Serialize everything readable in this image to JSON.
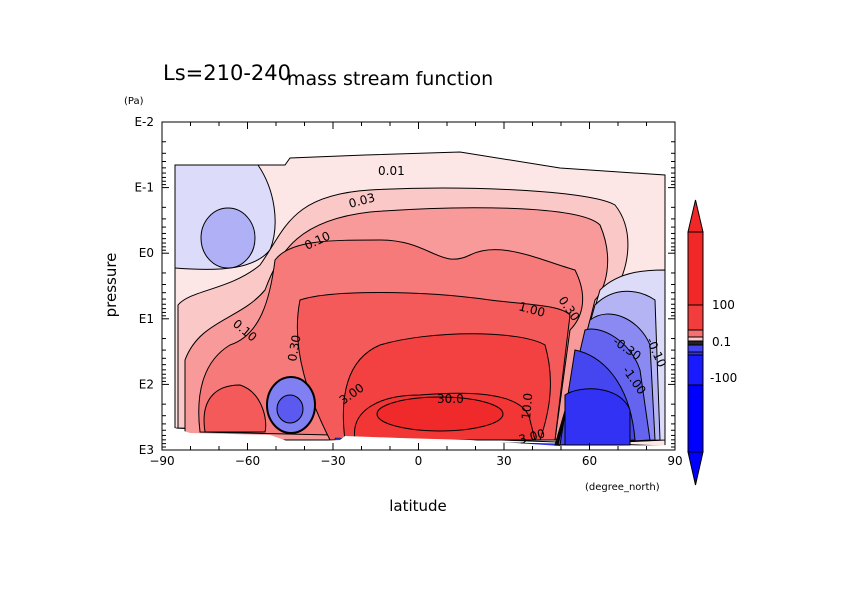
{
  "chart_data": {
    "type": "heatmap",
    "subtype": "filled contour",
    "title": "mass stream function",
    "subtitle": "Ls=210-240",
    "xlabel": "latitude",
    "xunit": "(degree_north)",
    "ylabel": "pressure",
    "yunit": "(Pa)",
    "xlim": [
      -90,
      90
    ],
    "ylim": [
      1000,
      0.01
    ],
    "yscale": "log",
    "x_ticks": [
      "-90",
      "-60",
      "-30",
      "0",
      "30",
      "60",
      "90"
    ],
    "y_ticks": [
      "E-2",
      "E-1",
      "E0",
      "E1",
      "E2",
      "E3"
    ],
    "contour_labels": [
      "0.01",
      "0.03",
      "0.10",
      "0.10",
      "0.30",
      "0.30",
      "1.00",
      "3.00",
      "30.0",
      "10.0",
      "3.00",
      "-0.30",
      "-0.10",
      "-1.00"
    ],
    "colorbar": {
      "tick_labels": [
        "100",
        "-100"
      ],
      "overlapping_labels": "0.1",
      "positive_color": "#f22828",
      "negative_color": "#0000ff"
    },
    "colors": {
      "positive": "#f22828",
      "negative": "#0000ff",
      "zero": "#ffffff"
    },
    "features": [
      {
        "desc": "main positive cell",
        "center_lat": 5,
        "center_pressure": 300,
        "max_label": "30.0"
      },
      {
        "desc": "northern negative cell",
        "center_lat": 65,
        "center_pressure": 300
      },
      {
        "desc": "southern negative cell",
        "center_lat": -45,
        "center_pressure": 250
      }
    ]
  }
}
